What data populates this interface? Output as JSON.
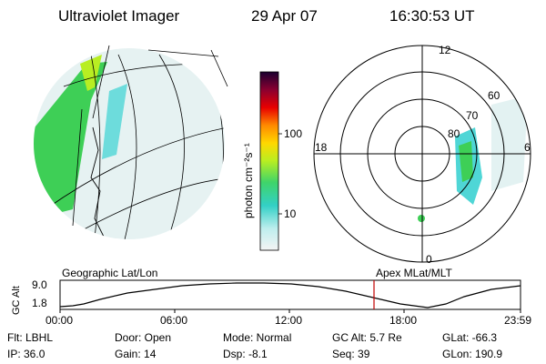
{
  "header": {
    "instrument": "Ultraviolet Imager",
    "date": "29 Apr 07",
    "time": "16:30:53 UT"
  },
  "colorbar": {
    "unit_label": "photon cm⁻²s⁻¹",
    "ticks": [
      "100",
      "10"
    ]
  },
  "polar_plot": {
    "mlt_labels": [
      "12",
      "18",
      "6",
      "0"
    ],
    "lat_labels": [
      "60",
      "70",
      "80"
    ]
  },
  "left_label": "Geographic Lat/Lon",
  "right_label": "Apex MLat/MLT",
  "timeline": {
    "ylabel": "GC Alt",
    "yticks": [
      "9.0",
      "1.8"
    ],
    "xticks": [
      "00:00",
      "06:00",
      "12:00",
      "18:00",
      "23:59"
    ]
  },
  "status": {
    "filter": "Flt: LBHL",
    "ip": "IP: 36.0",
    "door": "Door: Open",
    "gain": "Gain: 14",
    "mode": "Mode: Normal",
    "dsp": "Dsp:   -8.1",
    "gcalt": "GC Alt: 5.7 Re",
    "seq": "Seq: 39",
    "glat": "GLat: -66.3",
    "glon": "GLon: 190.9"
  },
  "colors": {
    "marker": "#c00000",
    "aurora_green": "#2ecc2e",
    "aurora_cyan": "#4fd6d6"
  }
}
